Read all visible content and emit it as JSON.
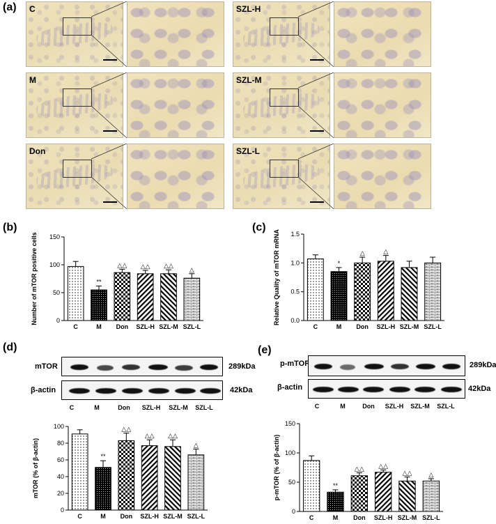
{
  "panels": {
    "a": "(a)",
    "b": "(b)",
    "c": "(c)",
    "d": "(d)",
    "e": "(e)"
  },
  "micrographs": [
    {
      "label": "C"
    },
    {
      "label": "M"
    },
    {
      "label": "Don"
    },
    {
      "label": "SZL-H"
    },
    {
      "label": "SZL-M"
    },
    {
      "label": "SZL-L"
    }
  ],
  "blots": {
    "d": {
      "target": "mTOR",
      "target_kda": "289kDa",
      "loading": "β-actin",
      "loading_kda": "42kDa"
    },
    "e": {
      "target": "p-mTOR",
      "target_kda": "289kDa",
      "loading": "β-actin",
      "loading_kda": "42kDa"
    },
    "lanes": [
      "C",
      "M",
      "Don",
      "SZL-H",
      "SZL-M",
      "SZL-L"
    ]
  },
  "colors": {
    "bar_edge": "#000000",
    "bar_fill": "#ffffff",
    "m_fill": "#000000"
  },
  "chart_data": [
    {
      "id": "b",
      "type": "bar",
      "categories": [
        "C",
        "M",
        "Don",
        "SZL-H",
        "SZL-M",
        "SZL-L"
      ],
      "values": [
        97,
        55,
        86,
        84,
        84,
        76
      ],
      "errors": [
        9,
        7,
        6,
        6,
        7,
        8
      ],
      "annotations": [
        "",
        "**",
        "△△",
        "△△",
        "△△",
        "△"
      ],
      "ylabel": "Number of mTOR positive cells",
      "ylim": [
        0,
        150
      ],
      "yticks": [
        0,
        50,
        100,
        150
      ]
    },
    {
      "id": "c",
      "type": "bar",
      "categories": [
        "C",
        "M",
        "Don",
        "SZL-H",
        "SZL-M",
        "SZL-L"
      ],
      "values": [
        1.07,
        0.85,
        1.0,
        1.03,
        0.92,
        1.0
      ],
      "errors": [
        0.07,
        0.07,
        0.1,
        0.1,
        0.11,
        0.1
      ],
      "annotations": [
        "",
        "*",
        "△",
        "△",
        "",
        ""
      ],
      "ylabel": "Relative Quality of mTOR mRNA",
      "ylim": [
        0,
        1.5
      ],
      "yticks": [
        "0.0",
        "0.5",
        "1.0",
        "1.5"
      ]
    },
    {
      "id": "d",
      "type": "bar",
      "categories": [
        "C",
        "M",
        "Don",
        "SZL-H",
        "SZL-M",
        "SZL-L"
      ],
      "values": [
        91,
        51,
        83,
        77,
        76,
        66
      ],
      "errors": [
        5,
        8,
        9,
        7,
        8,
        7
      ],
      "annotations": [
        "",
        "**",
        "△△",
        "△△",
        "△△",
        "△"
      ],
      "ylabel": "mTOR (% of β-actin)",
      "ylim": [
        0,
        100
      ],
      "yticks": [
        "0",
        "20",
        "40",
        "60",
        "80",
        "100"
      ]
    },
    {
      "id": "e",
      "type": "bar",
      "categories": [
        "C",
        "M",
        "Don",
        "SZL-H",
        "SZL-M",
        "SZL-L"
      ],
      "values": [
        87,
        33,
        61,
        67,
        52,
        52
      ],
      "errors": [
        8,
        4,
        5,
        4,
        7,
        4
      ],
      "annotations": [
        "",
        "**",
        "△△",
        "△△",
        "△△",
        "△"
      ],
      "ylabel": "p-mTOR (% of β-actin)",
      "ylim": [
        0,
        150
      ],
      "yticks": [
        "0",
        "50",
        "100",
        "150"
      ]
    }
  ]
}
